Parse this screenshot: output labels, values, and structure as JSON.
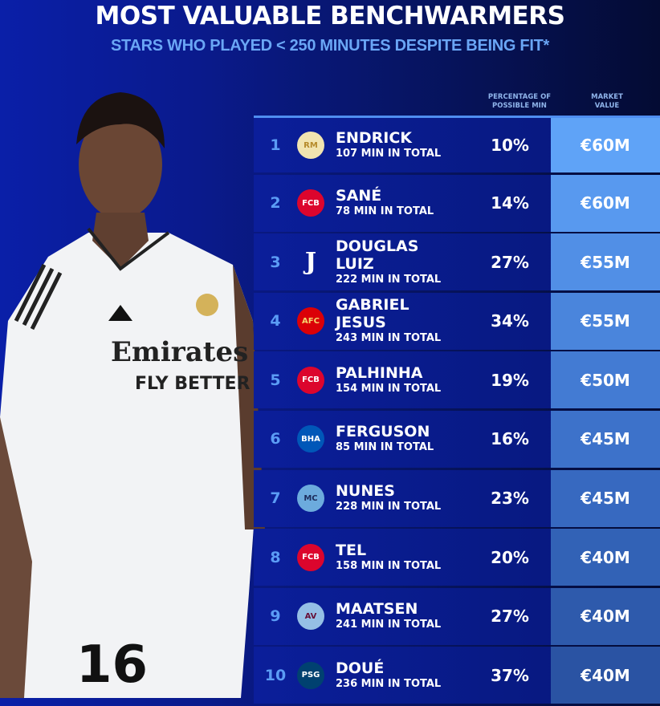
{
  "header": {
    "title": "MOST VALUABLE BENCHWARMERS",
    "subtitle": "STARS WHO PLAYED < 250 MINUTES DESPITE BEING FIT*"
  },
  "columns": {
    "percentage": "PERCENTAGE OF POSSIBLE MIN",
    "value": "MARKET VALUE"
  },
  "photo": {
    "shirt_sponsor_line1": "Emirates",
    "shirt_sponsor_line2": "FLY BETTER",
    "shirt_number": "16"
  },
  "rows": [
    {
      "rank": "1",
      "club_icon": "real-madrid-crest",
      "name": "ENDRICK",
      "minutes": "107 MIN IN TOTAL",
      "percentage": "10%",
      "value": "€60M",
      "value_color": "#5fa3f7"
    },
    {
      "rank": "2",
      "club_icon": "bayern-crest",
      "name": "SANÉ",
      "minutes": "78 MIN IN TOTAL",
      "percentage": "14%",
      "value": "€60M",
      "value_color": "#5899ef"
    },
    {
      "rank": "3",
      "club_icon": "juventus-crest",
      "name": "DOUGLAS LUIZ",
      "minutes": "222 MIN IN TOTAL",
      "percentage": "27%",
      "value": "€55M",
      "value_color": "#518fe6"
    },
    {
      "rank": "4",
      "club_icon": "arsenal-crest",
      "name": "GABRIEL JESUS",
      "minutes": "243 MIN IN TOTAL",
      "percentage": "34%",
      "value": "€55M",
      "value_color": "#4a85dc"
    },
    {
      "rank": "5",
      "club_icon": "bayern-crest",
      "name": "PALHINHA",
      "minutes": "154 MIN IN TOTAL",
      "percentage": "19%",
      "value": "€50M",
      "value_color": "#437bd3"
    },
    {
      "rank": "6",
      "club_icon": "brighton-crest",
      "name": "FERGUSON",
      "minutes": "85 MIN IN TOTAL",
      "percentage": "16%",
      "value": "€45M",
      "value_color": "#3d72ca"
    },
    {
      "rank": "7",
      "club_icon": "man-city-crest",
      "name": "NUNES",
      "minutes": "228 MIN IN TOTAL",
      "percentage": "23%",
      "value": "€45M",
      "value_color": "#3769c0"
    },
    {
      "rank": "8",
      "club_icon": "bayern-crest",
      "name": "TEL",
      "minutes": "158 MIN IN TOTAL",
      "percentage": "20%",
      "value": "€40M",
      "value_color": "#3262b6"
    },
    {
      "rank": "9",
      "club_icon": "aston-villa-crest",
      "name": "MAATSEN",
      "minutes": "241 MIN IN TOTAL",
      "percentage": "27%",
      "value": "€40M",
      "value_color": "#2e5aac"
    },
    {
      "rank": "10",
      "club_icon": "psg-crest",
      "name": "DOUÉ",
      "minutes": "236 MIN IN TOTAL",
      "percentage": "37%",
      "value": "€40M",
      "value_color": "#2a53a3"
    }
  ]
}
